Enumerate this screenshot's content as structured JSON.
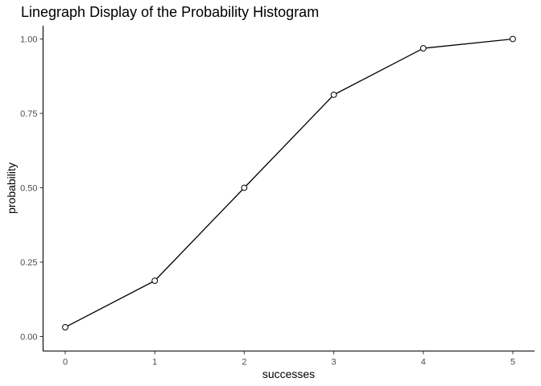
{
  "chart_data": {
    "type": "line",
    "title": "Linegraph Display of the Probability Histogram",
    "xlabel": "successes",
    "ylabel": "probability",
    "x": [
      0,
      1,
      2,
      3,
      4,
      5
    ],
    "y": [
      0.03125,
      0.1875,
      0.5,
      0.8125,
      0.96875,
      1.0
    ],
    "xlim": [
      -0.25,
      5.25
    ],
    "ylim": [
      0,
      1.0
    ],
    "x_ticks": [
      0,
      1,
      2,
      3,
      4,
      5
    ],
    "x_tick_labels": [
      "0",
      "1",
      "2",
      "3",
      "4",
      "5"
    ],
    "y_ticks": [
      0,
      0.25,
      0.5,
      0.75,
      1.0
    ],
    "y_tick_labels": [
      "0.00",
      "0.25",
      "0.50",
      "0.75",
      "1.00"
    ],
    "grid": false,
    "legend": "none",
    "line_color": "#000000",
    "marker_fill": "#ffffff",
    "marker_stroke": "#000000"
  }
}
